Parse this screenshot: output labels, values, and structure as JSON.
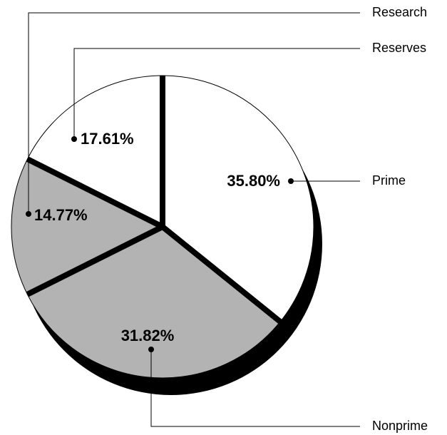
{
  "chart_data": {
    "type": "pie",
    "categories": [
      "Prime",
      "Nonprime",
      "Research",
      "Reserves"
    ],
    "values": [
      35.8,
      31.82,
      14.77,
      17.61
    ],
    "value_labels": [
      "35.80%",
      "31.82%",
      "14.77%",
      "17.61%"
    ],
    "colors": [
      "#ffffff",
      "#b3b3b3",
      "#b3b3b3",
      "#ffffff"
    ]
  }
}
